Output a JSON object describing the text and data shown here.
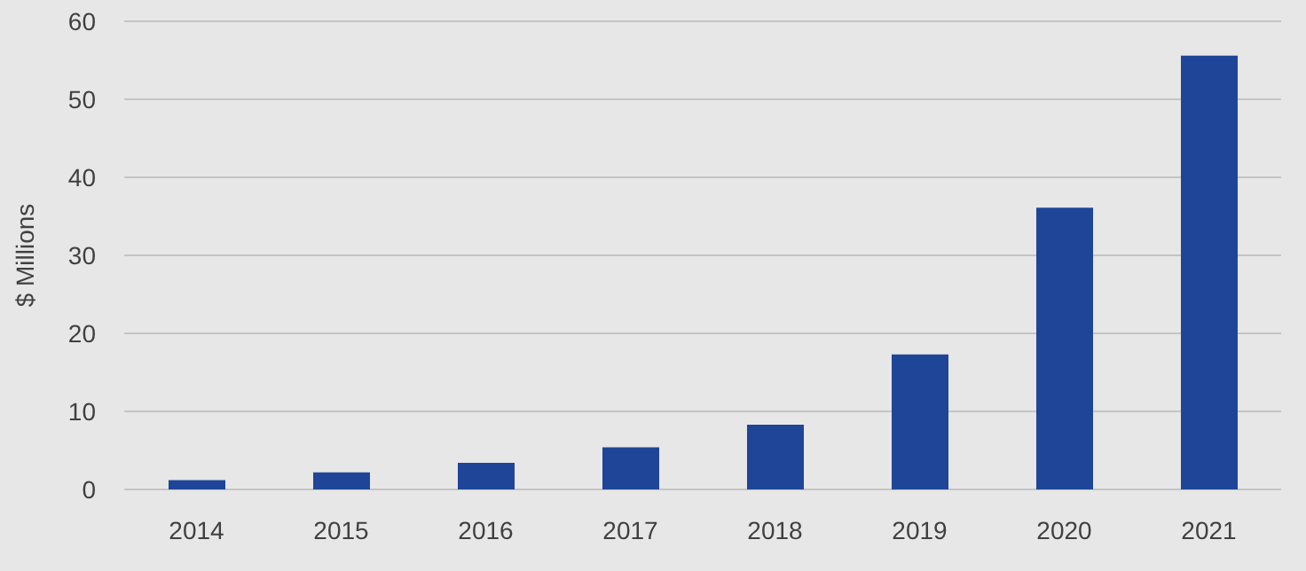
{
  "chart_data": {
    "type": "bar",
    "ylabel": "$ Millions",
    "categories": [
      "2014",
      "2015",
      "2016",
      "2017",
      "2018",
      "2019",
      "2020",
      "2021"
    ],
    "values": [
      1.2,
      2.2,
      3.4,
      5.4,
      8.3,
      17.3,
      36.1,
      55.6
    ],
    "color": "#1f4599",
    "ylim": [
      0,
      60
    ],
    "yticks": [
      0,
      10,
      20,
      30,
      40,
      50,
      60
    ],
    "grid": "y",
    "legend": false
  }
}
